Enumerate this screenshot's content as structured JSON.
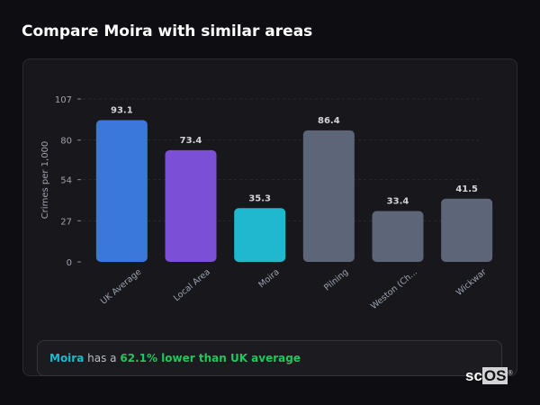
{
  "title": "Compare Moira with similar areas",
  "chart_data": {
    "type": "bar",
    "ylabel": "Crimes per 1,000",
    "ylim": [
      0,
      107
    ],
    "yticks": [
      0,
      27,
      54,
      80,
      107
    ],
    "grid": true,
    "categories": [
      "UK Average",
      "Local Area",
      "Moira",
      "Pilning",
      "Weston (Ch...",
      "Wickwar"
    ],
    "values": [
      93.1,
      73.4,
      35.3,
      86.4,
      33.4,
      41.5
    ],
    "data_labels": [
      "93.1",
      "73.4",
      "35.3",
      "86.4",
      "33.4",
      "41.5"
    ],
    "colors": [
      "#3b78dc",
      "#7b4fd6",
      "#1fb8cf",
      "#5d6678",
      "#5d6678",
      "#5d6678"
    ]
  },
  "insight": {
    "area": "Moira",
    "middle": "has a",
    "comparison": "62.1% lower than UK average"
  },
  "logo": {
    "text_a": "sc",
    "text_b": "OS",
    "mark": "®"
  }
}
